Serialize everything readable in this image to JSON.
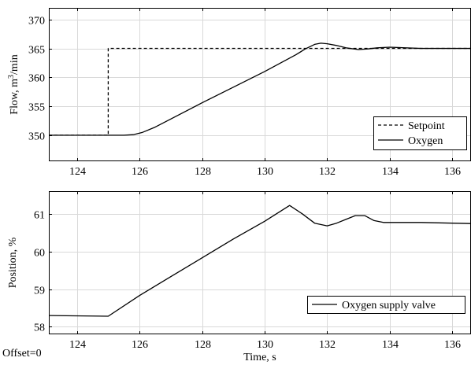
{
  "offset_label": "Offset=0",
  "chart_data": [
    {
      "type": "line",
      "ylabel_main": "Flow, m",
      "ylabel_sup": "3",
      "ylabel_tail": "/min",
      "xlim": [
        123.1,
        136.6
      ],
      "ylim": [
        345.5,
        372
      ],
      "xticks": [
        124,
        126,
        128,
        130,
        132,
        134,
        136
      ],
      "yticks": [
        350,
        355,
        360,
        365,
        370
      ],
      "grid": true,
      "legend": "bottom-right",
      "series": [
        {
          "name": "Setpoint",
          "style": "dashed",
          "color": "#000000",
          "x": [
            123.1,
            125,
            125,
            136.6
          ],
          "y": [
            350,
            350,
            365,
            365
          ]
        },
        {
          "name": "Oxygen",
          "style": "solid",
          "color": "#000000",
          "x": [
            123.1,
            125.5,
            125.8,
            126.1,
            126.5,
            127,
            128,
            129,
            130,
            131,
            131.3,
            131.6,
            131.8,
            132,
            132.3,
            132.6,
            133,
            133.3,
            133.6,
            134,
            134.5,
            135,
            136.6
          ],
          "y": [
            350,
            350,
            350.1,
            350.5,
            351.4,
            352.8,
            355.6,
            358.3,
            361.0,
            363.9,
            364.9,
            365.7,
            365.9,
            365.8,
            365.5,
            365.1,
            364.8,
            364.9,
            365.1,
            365.2,
            365.1,
            365.0,
            365.0
          ]
        }
      ]
    },
    {
      "type": "line",
      "xlabel": "Time, s",
      "ylabel": "Position, %",
      "xlim": [
        123.1,
        136.6
      ],
      "ylim": [
        57.8,
        61.6
      ],
      "xticks": [
        124,
        126,
        128,
        130,
        132,
        134,
        136
      ],
      "yticks": [
        58,
        59,
        60,
        61
      ],
      "grid": true,
      "legend": "bottom-right",
      "series": [
        {
          "name": "Oxygen supply valve",
          "style": "solid",
          "color": "#000000",
          "x": [
            123.1,
            125,
            126,
            127,
            128,
            129,
            130,
            130.8,
            131.2,
            131.6,
            132,
            132.3,
            132.6,
            132.9,
            133.2,
            133.5,
            133.8,
            134.2,
            135,
            136.6
          ],
          "y": [
            58.3,
            58.28,
            58.83,
            59.33,
            59.83,
            60.33,
            60.8,
            61.22,
            61.0,
            60.75,
            60.68,
            60.75,
            60.85,
            60.95,
            60.95,
            60.82,
            60.77,
            60.77,
            60.77,
            60.74
          ]
        }
      ]
    }
  ]
}
